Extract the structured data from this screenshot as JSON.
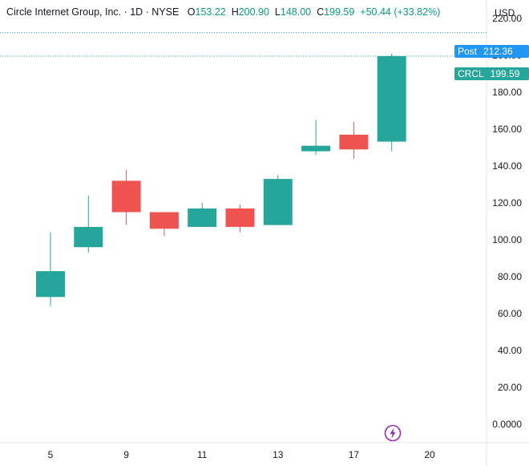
{
  "header": {
    "title": "Circle Internet Group, Inc. · 1D · NYSE",
    "open_label": "O",
    "open": "153.22",
    "high_label": "H",
    "high": "200.90",
    "low_label": "L",
    "low": "148.00",
    "close_label": "C",
    "close": "199.59",
    "change": "+50.44 (+33.82%)"
  },
  "currency": "USD",
  "tags": {
    "post": {
      "name": "Post",
      "value": "212.36",
      "price": 212.36,
      "color": "#2196f3"
    },
    "last": {
      "name": "CRCL",
      "value": "199.59",
      "price": 199.59,
      "color": "#26a69a"
    }
  },
  "icons": {
    "flash": "lightning-icon"
  },
  "colors": {
    "up": "#26a69a",
    "down": "#ef5350",
    "axis_text": "#131722",
    "grid_line": "#e0e3eb"
  },
  "chart_data": {
    "type": "candlestick",
    "ylim": [
      -10,
      230
    ],
    "y_ticks": [
      "220.00",
      "200.00",
      "180.00",
      "160.00",
      "140.00",
      "120.00",
      "100.00",
      "80.00",
      "60.00",
      "40.00",
      "20.00",
      "0.0000"
    ],
    "x_ticks": [
      "5",
      "9",
      "11",
      "13",
      "17",
      "20"
    ],
    "candles": [
      {
        "date": "5",
        "open": 69,
        "high": 104,
        "low": 64,
        "close": 83
      },
      {
        "date": "6",
        "open": 96,
        "high": 124,
        "low": 93,
        "close": 107
      },
      {
        "date": "9",
        "open": 132,
        "high": 138,
        "low": 108,
        "close": 115
      },
      {
        "date": "10",
        "open": 115,
        "high": 115,
        "low": 102,
        "close": 106
      },
      {
        "date": "11",
        "open": 107,
        "high": 120,
        "low": 107,
        "close": 117
      },
      {
        "date": "12",
        "open": 117,
        "high": 119,
        "low": 104,
        "close": 107
      },
      {
        "date": "13",
        "open": 108,
        "high": 135,
        "low": 108,
        "close": 133
      },
      {
        "date": "16",
        "open": 148,
        "high": 165,
        "low": 146,
        "close": 151
      },
      {
        "date": "17",
        "open": 157,
        "high": 164,
        "low": 144,
        "close": 149
      },
      {
        "date": "18",
        "open": 153.22,
        "high": 200.9,
        "low": 148,
        "close": 199.59
      }
    ]
  }
}
